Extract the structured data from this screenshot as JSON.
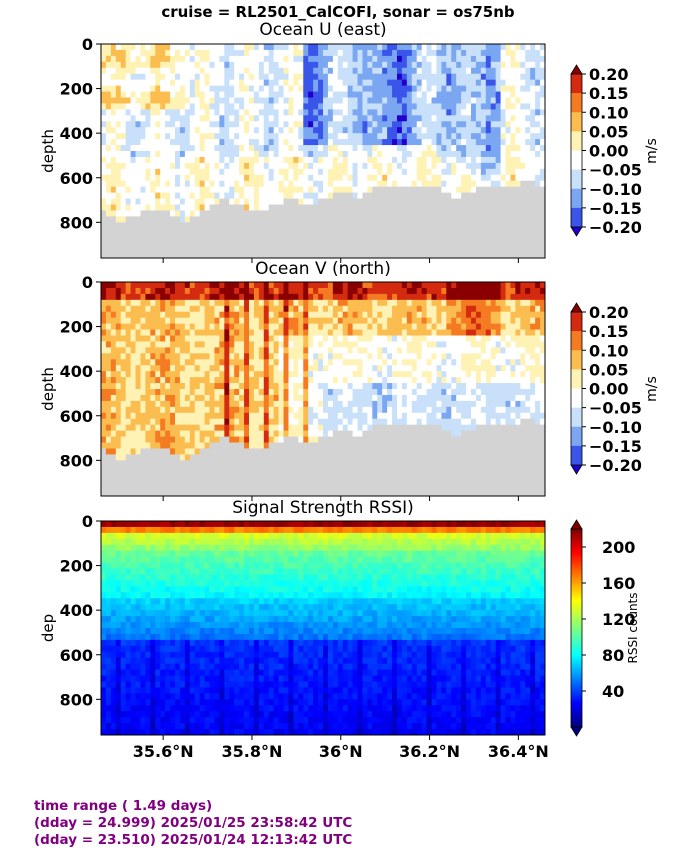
{
  "suptitle": "cruise = RL2501_CalCOFI,  sonar = os75nb",
  "footer": {
    "line1": "time range ( 1.49 days)",
    "line2": "(dday = 24.999) 2025/01/25 23:58:42 UTC",
    "line3": "(dday = 23.510) 2025/01/24 12:13:42 UTC"
  },
  "chart_data": [
    {
      "type": "heatmap",
      "title": "Ocean U (east)",
      "ylabel": "depth",
      "yticks": [
        "0",
        "200",
        "400",
        "600",
        "800"
      ],
      "ylim": [
        960,
        0
      ],
      "xlim": [
        35.46,
        36.46
      ],
      "colorbar": {
        "label": "m/s",
        "ticks": [
          "0.20",
          "0.15",
          "0.10",
          "0.05",
          "0.00",
          "−0.05",
          "−0.10",
          "−0.15",
          "−0.20"
        ],
        "range": [
          -0.2,
          0.2
        ]
      },
      "colors": {
        "nodata": "#d3d3d3"
      }
    },
    {
      "type": "heatmap",
      "title": "Ocean V (north)",
      "ylabel": "depth",
      "yticks": [
        "0",
        "200",
        "400",
        "600",
        "800"
      ],
      "ylim": [
        960,
        0
      ],
      "xlim": [
        35.46,
        36.46
      ],
      "colorbar": {
        "label": "m/s",
        "ticks": [
          "0.20",
          "0.15",
          "0.10",
          "0.05",
          "0.00",
          "−0.05",
          "−0.10",
          "−0.15",
          "−0.20"
        ],
        "range": [
          -0.2,
          0.2
        ]
      },
      "colors": {
        "nodata": "#d3d3d3"
      }
    },
    {
      "type": "heatmap",
      "title": "Signal Strength RSSI)",
      "ylabel": "dep",
      "yticks": [
        "0",
        "200",
        "400",
        "600",
        "800"
      ],
      "ylim": [
        960,
        0
      ],
      "xlim": [
        35.46,
        36.46
      ],
      "xticks": [
        "35.6°N",
        "35.8°N",
        "36°N",
        "36.2°N",
        "36.4°N"
      ],
      "colorbar": {
        "label": "RSSI counts",
        "ticks": [
          "200",
          "160",
          "120",
          "80",
          "40"
        ],
        "range": [
          0,
          220
        ]
      }
    }
  ]
}
